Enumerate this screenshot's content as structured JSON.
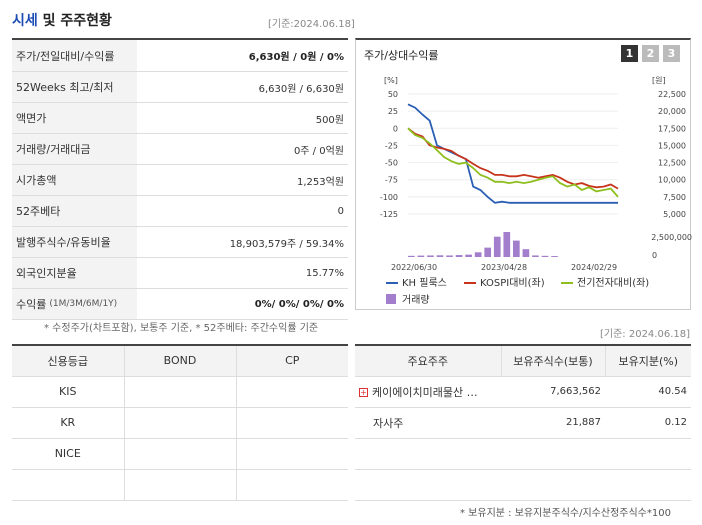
{
  "header": {
    "title_main": "시세",
    "title_rest": " 및 주주현황",
    "date": "[기준:2024.06.18]"
  },
  "quote": {
    "price_label": "주가/전일대비/수익률",
    "price_value": "6,630원 / 0원 / 0%",
    "week52_label": "52Weeks 최고/최저",
    "week52_value": "6,630원 / 6,630원",
    "par_label": "액면가",
    "par_value": "500원",
    "volume_label": "거래량/거래대금",
    "volume_value": "0주 / 0억원",
    "mcap_label": "시가총액",
    "mcap_value": "1,253억원",
    "beta_label": "52주베타",
    "beta_value": "0",
    "shares_label": "발행주식수/유동비율",
    "shares_value": "18,903,579주 / 59.34%",
    "foreign_label": "외국인지분율",
    "foreign_value": "15.77%",
    "return_label": "수익률",
    "return_sub": "(1M/3M/6M/1Y)",
    "return_value": "0%/ 0%/ 0%/ 0%",
    "note": "* 수정주가(차트포함), 보통주 기준, * 52주베타: 주간수익률 기준"
  },
  "chart_panel": {
    "title": "주가/상대수익률",
    "pages": [
      "1",
      "2",
      "3"
    ]
  },
  "chart_data": {
    "type": "line",
    "left_unit": "[%]",
    "right_unit": "[원]",
    "left_ticks": [
      "50",
      "25",
      "0",
      "-25",
      "-50",
      "-75",
      "-100",
      "-125"
    ],
    "right_ticks": [
      "22,500",
      "20,000",
      "17,500",
      "15,000",
      "12,500",
      "10,000",
      "7,500",
      "5,000"
    ],
    "volume_ticks": [
      "2,500,000",
      "0"
    ],
    "x_ticks": [
      "2022/06/30",
      "2023/04/28",
      "2024/02/29"
    ],
    "ylim_left": [
      -125,
      50
    ],
    "ylim_right": [
      5000,
      22500
    ],
    "series": [
      {
        "name": "KH 필룩스",
        "color": "#2b5fb4",
        "axis": "right",
        "values": [
          21000,
          20500,
          19500,
          18600,
          15000,
          14500,
          14000,
          13500,
          13000,
          9000,
          8500,
          7500,
          6630,
          6800,
          6630,
          6630,
          6630,
          6630,
          6630,
          6630,
          6630,
          6630,
          6630,
          6630,
          6630,
          6630,
          6630,
          6630,
          6630,
          6630
        ]
      },
      {
        "name": "KOSPI대비(좌)",
        "color": "#c7331b",
        "axis": "left",
        "values": [
          0,
          -8,
          -12,
          -25,
          -28,
          -30,
          -33,
          -40,
          -45,
          -52,
          -58,
          -62,
          -68,
          -68,
          -70,
          -70,
          -68,
          -70,
          -72,
          -70,
          -68,
          -72,
          -78,
          -82,
          -80,
          -84,
          -86,
          -85,
          -82,
          -88
        ]
      },
      {
        "name": "전기전자대비(좌)",
        "color": "#8fbf1f",
        "axis": "left",
        "values": [
          0,
          -10,
          -14,
          -22,
          -32,
          -42,
          -48,
          -52,
          -50,
          -58,
          -68,
          -72,
          -78,
          -78,
          -80,
          -78,
          -80,
          -78,
          -75,
          -72,
          -70,
          -80,
          -85,
          -82,
          -90,
          -86,
          -92,
          -90,
          -88,
          -100
        ]
      }
    ],
    "volume": {
      "name": "거래량",
      "color": "#a37ecc",
      "values": [
        0.15,
        0.18,
        0.2,
        0.22,
        0.2,
        0.25,
        0.3,
        0.6,
        1.2,
        2.6,
        3.2,
        2.1,
        1.0,
        0.2,
        0.15,
        0.12
      ]
    }
  },
  "holders": {
    "date": "[기준: 2024.06.18]",
    "col_name": "주요주주",
    "col_shares": "보유주식수(보통)",
    "col_pct": "보유지분(%)",
    "rows": [
      {
        "name": "케이에이치미래물산 …",
        "shares": "7,663,562",
        "pct": "40.54"
      },
      {
        "name": "자사주",
        "shares": "21,887",
        "pct": "0.12"
      }
    ],
    "note": "* 보유지분 : 보유지분주식수/지수산정주식수*100"
  },
  "credit": {
    "col_grade": "신용등급",
    "col_bond": "BOND",
    "col_cp": "CP",
    "rows": [
      "KIS",
      "KR",
      "NICE",
      ""
    ]
  }
}
